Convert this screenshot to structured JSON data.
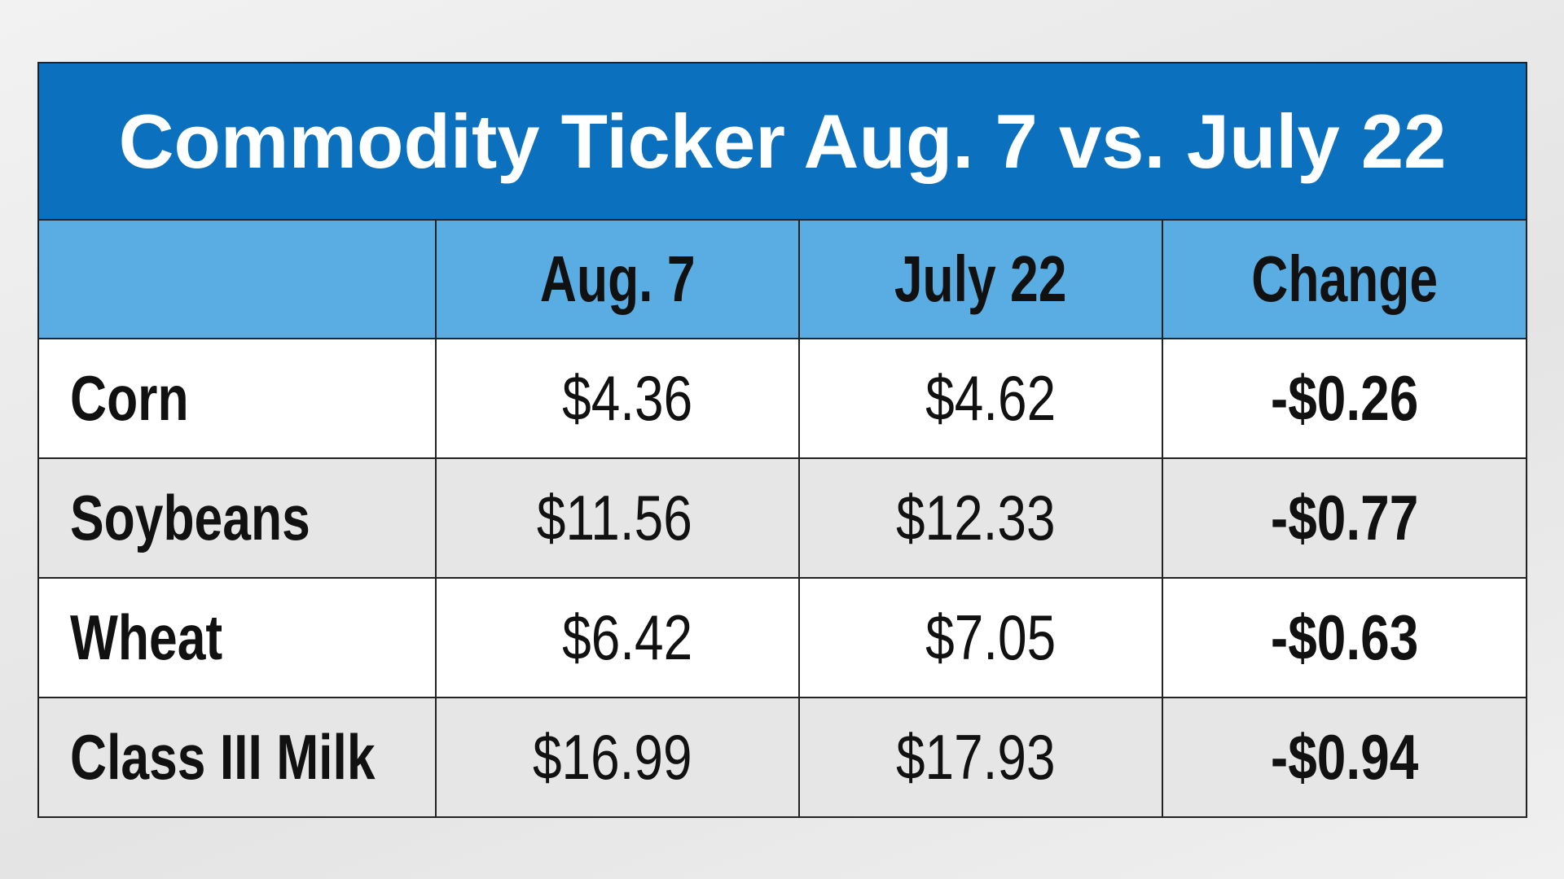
{
  "title": "Commodity Ticker Aug. 7 vs. July 22",
  "table": {
    "columns": [
      "",
      "Aug. 7",
      "July 22",
      "Change"
    ],
    "rows": [
      [
        "Corn",
        "$4.36",
        "$4.62",
        "-$0.26"
      ],
      [
        "Soybeans",
        "$11.56",
        "$12.33",
        "-$0.77"
      ],
      [
        "Wheat",
        "$6.42",
        "$7.05",
        "-$0.63"
      ],
      [
        "Class III Milk",
        "$16.99",
        "$17.93",
        "-$0.94"
      ]
    ]
  }
}
